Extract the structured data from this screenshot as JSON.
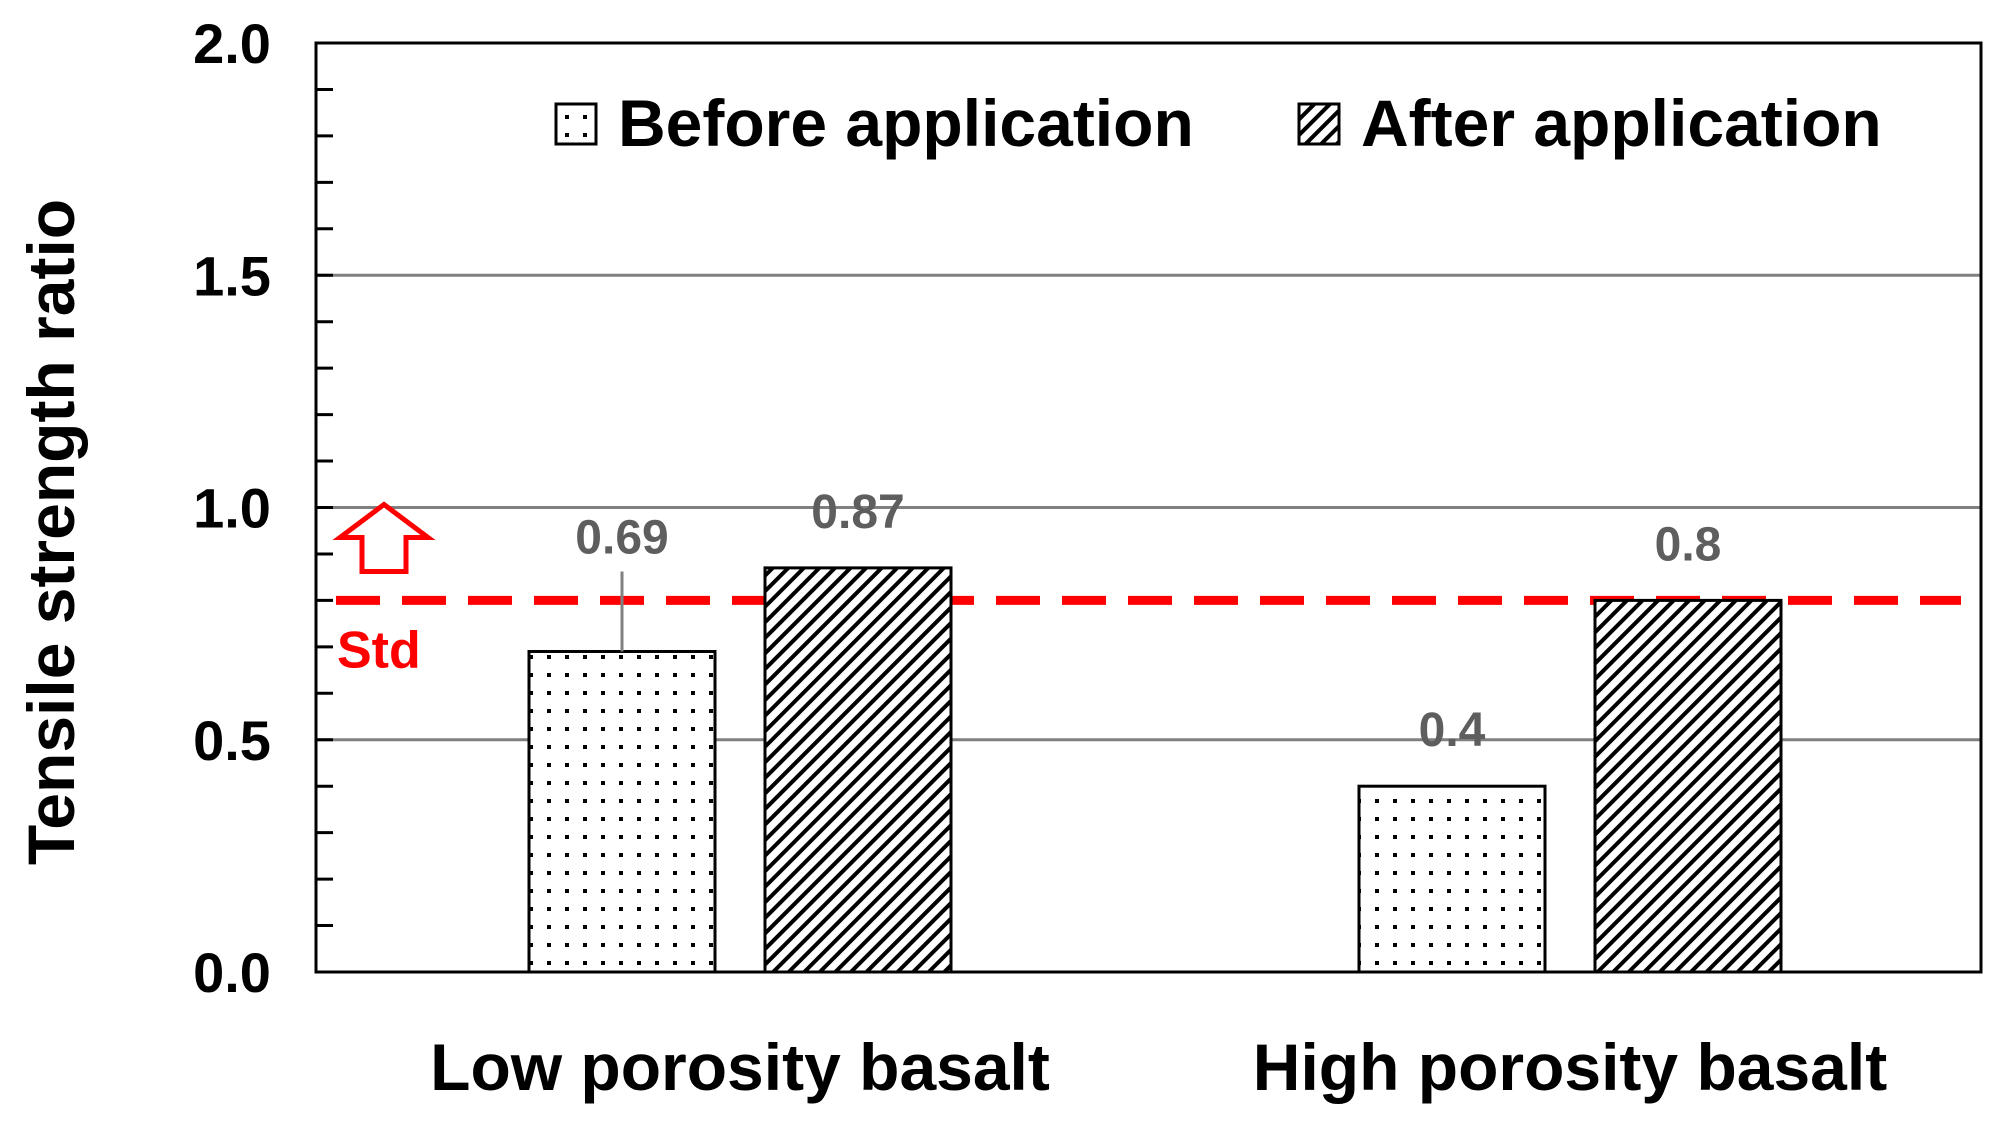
{
  "chart_data": {
    "type": "bar",
    "categories": [
      "Low porosity basalt",
      "High porosity basalt"
    ],
    "series": [
      {
        "name": "Before application",
        "values": [
          0.69,
          0.4
        ],
        "pattern": "dots"
      },
      {
        "name": "After application",
        "values": [
          0.87,
          0.8
        ],
        "pattern": "hatch"
      }
    ],
    "data_labels": [
      [
        "0.69",
        "0.4"
      ],
      [
        "0.87",
        "0.8"
      ]
    ],
    "xlabel": "",
    "ylabel": "Tensile strength ratio",
    "ylim": [
      0,
      2.0
    ],
    "yticks": [
      0.0,
      0.5,
      1.0,
      1.5,
      2.0
    ],
    "ytick_labels": [
      "0.0",
      "0.5",
      "1.0",
      "1.5",
      "2.0"
    ],
    "minor_tick_step": 0.1,
    "grid": true,
    "legend_position": "top-right",
    "reference_line": {
      "label": "Std",
      "value": 0.8,
      "color": "#ff0000",
      "style": "dashed",
      "arrow": "up"
    }
  }
}
